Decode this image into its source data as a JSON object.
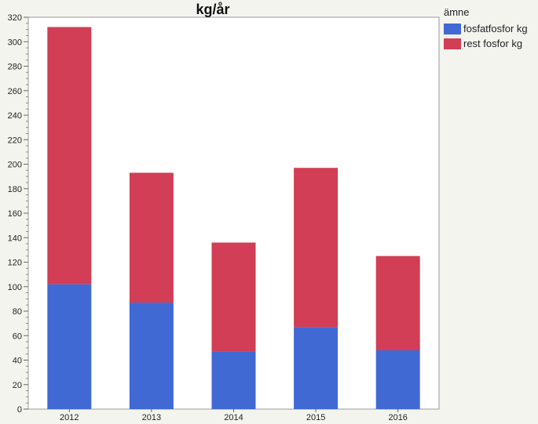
{
  "chart_data": {
    "type": "bar",
    "stacked": true,
    "title": "kg/år",
    "xlabel": "",
    "ylabel": "",
    "categories": [
      "2012",
      "2013",
      "2014",
      "2015",
      "2016"
    ],
    "series": [
      {
        "name": "fosfatfosfor kg",
        "color": "#4169d4",
        "values": [
          102,
          87,
          47,
          67,
          48
        ]
      },
      {
        "name": "rest fosfor kg",
        "color": "#d13e55",
        "values": [
          210,
          106,
          89,
          130,
          77
        ]
      }
    ],
    "ylim": [
      0,
      320
    ],
    "yticks": [
      0,
      20,
      40,
      60,
      80,
      100,
      120,
      140,
      160,
      180,
      200,
      220,
      240,
      260,
      280,
      300,
      320
    ],
    "grid": false,
    "legend": {
      "title": "ämne",
      "position": "right"
    }
  }
}
